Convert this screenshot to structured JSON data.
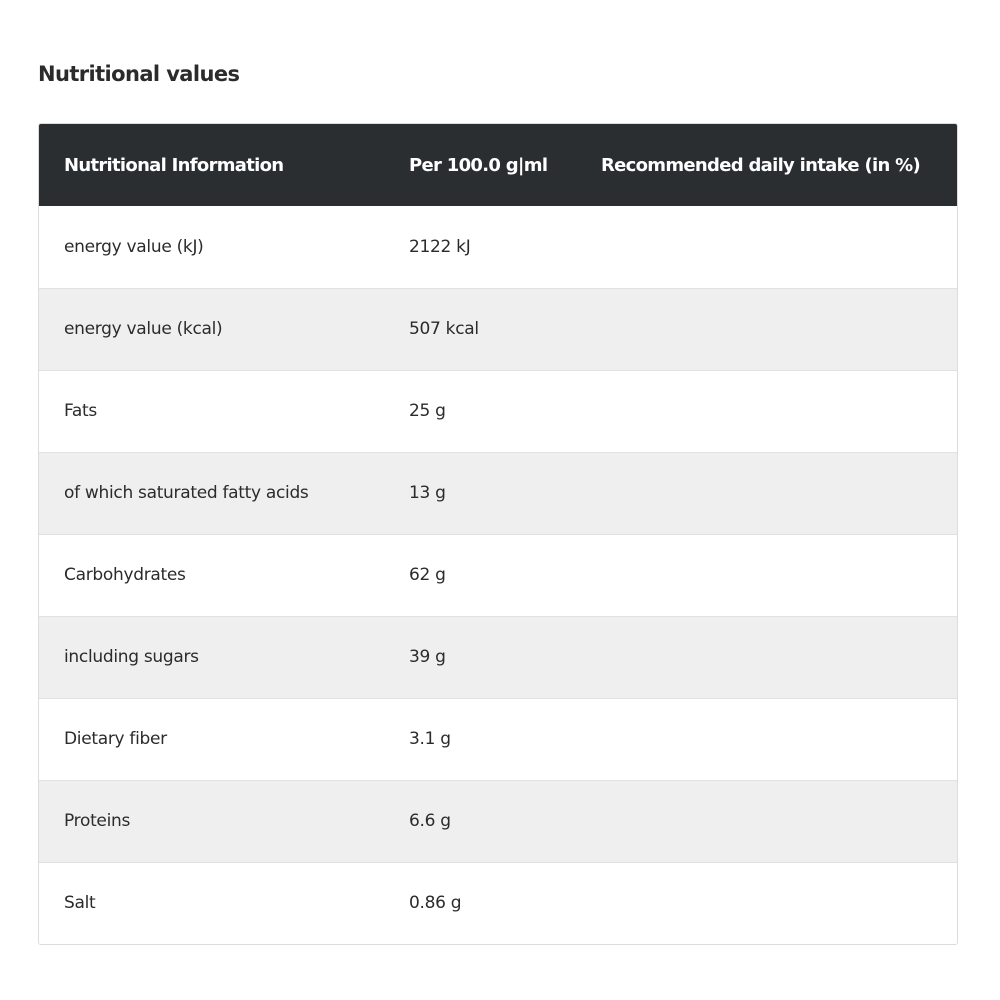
{
  "section": {
    "title": "Nutritional values"
  },
  "table": {
    "headers": [
      "Nutritional Information",
      "Per 100.0 g|ml",
      "Recommended daily intake (in %)"
    ],
    "rows": [
      {
        "name": "energy value (kJ)",
        "per100": "2122 kJ",
        "rdi": ""
      },
      {
        "name": "energy value (kcal)",
        "per100": "507 kcal",
        "rdi": ""
      },
      {
        "name": "Fats",
        "per100": "25 g",
        "rdi": ""
      },
      {
        "name": "of which saturated fatty acids",
        "per100": "13 g",
        "rdi": ""
      },
      {
        "name": "Carbohydrates",
        "per100": "62 g",
        "rdi": ""
      },
      {
        "name": "including sugars",
        "per100": "39 g",
        "rdi": ""
      },
      {
        "name": "Dietary fiber",
        "per100": "3.1 g",
        "rdi": ""
      },
      {
        "name": "Proteins",
        "per100": "6.6 g",
        "rdi": ""
      },
      {
        "name": "Salt",
        "per100": "0.86 g",
        "rdi": ""
      }
    ]
  },
  "colors": {
    "header_bg": "#2a2e31",
    "header_text": "#ffffff",
    "row_alt_bg": "#efefef",
    "text": "#2b2b2b"
  }
}
